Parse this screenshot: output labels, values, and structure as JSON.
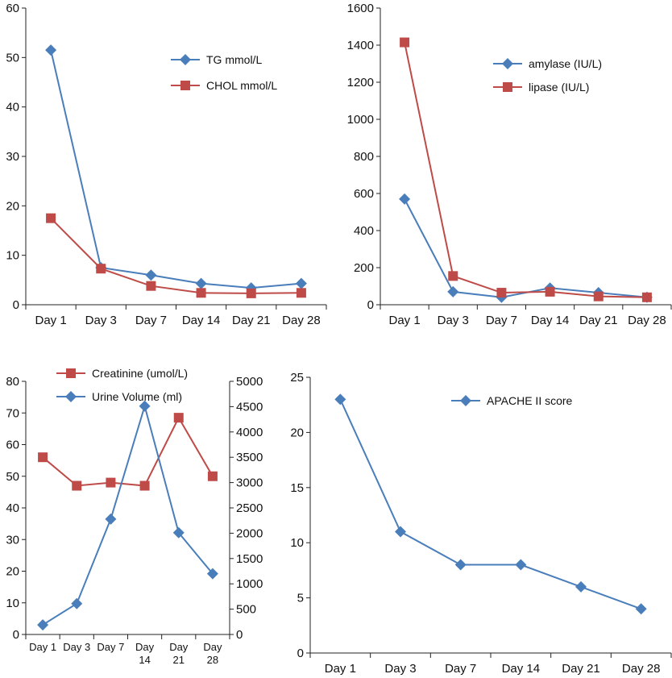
{
  "chart_data": [
    {
      "type": "line",
      "categories": [
        "Day 1",
        "Day 3",
        "Day 7",
        "Day 14",
        "Day 21",
        "Day 28"
      ],
      "ylim": [
        0,
        60
      ],
      "yticks": [
        0,
        10,
        20,
        30,
        40,
        50,
        60
      ],
      "series": [
        {
          "name": "TG mmol/L",
          "marker": "diamond",
          "color": "#4a7ebb",
          "values": [
            51.5,
            7.5,
            6,
            4.3,
            3.4,
            4.3
          ]
        },
        {
          "name": "CHOL mmol/L",
          "marker": "square",
          "color": "#be4b48",
          "values": [
            17.5,
            7.3,
            3.8,
            2.4,
            2.3,
            2.4
          ]
        }
      ],
      "legend": "top-right"
    },
    {
      "type": "line",
      "categories": [
        "Day 1",
        "Day 3",
        "Day 7",
        "Day 14",
        "Day 21",
        "Day 28"
      ],
      "ylim": [
        0,
        1600
      ],
      "yticks": [
        0,
        200,
        400,
        600,
        800,
        1000,
        1200,
        1400,
        1600
      ],
      "series": [
        {
          "name": "amylase (IU/L)",
          "marker": "diamond",
          "color": "#4a7ebb",
          "values": [
            570,
            70,
            40,
            90,
            65,
            40
          ]
        },
        {
          "name": "lipase (IU/L)",
          "marker": "square",
          "color": "#be4b48",
          "values": [
            1415,
            155,
            65,
            70,
            45,
            40
          ]
        }
      ],
      "legend": "top-right"
    },
    {
      "type": "line",
      "categories": [
        "Day 1",
        "Day 3",
        "Day 7",
        "Day\n14",
        "Day\n21",
        "Day\n28"
      ],
      "ylim": [
        0,
        80
      ],
      "yticks": [
        0,
        10,
        20,
        30,
        40,
        50,
        60,
        70,
        80
      ],
      "y2lim": [
        0,
        5000
      ],
      "y2ticks": [
        0,
        500,
        1000,
        1500,
        2000,
        2500,
        3000,
        3500,
        4000,
        4500,
        5000
      ],
      "series": [
        {
          "name": "Creatinine (umol/L)",
          "marker": "square",
          "color": "#be4b48",
          "axis": "left",
          "values": [
            56,
            47,
            48,
            47,
            68.5,
            50
          ]
        },
        {
          "name": "Urine Volume (ml)",
          "marker": "diamond",
          "color": "#4a7ebb",
          "axis": "right",
          "values": [
            190,
            610,
            2280,
            4510,
            2010,
            1200
          ]
        }
      ],
      "legend": "top"
    },
    {
      "type": "line",
      "categories": [
        "Day 1",
        "Day 3",
        "Day 7",
        "Day 14",
        "Day 21",
        "Day 28"
      ],
      "ylim": [
        0,
        25
      ],
      "yticks": [
        0,
        5,
        10,
        15,
        20,
        25
      ],
      "series": [
        {
          "name": "APACHE II score",
          "marker": "diamond",
          "color": "#4a7ebb",
          "values": [
            23,
            11,
            8,
            8,
            6,
            4
          ]
        }
      ],
      "legend": "top-right"
    }
  ]
}
